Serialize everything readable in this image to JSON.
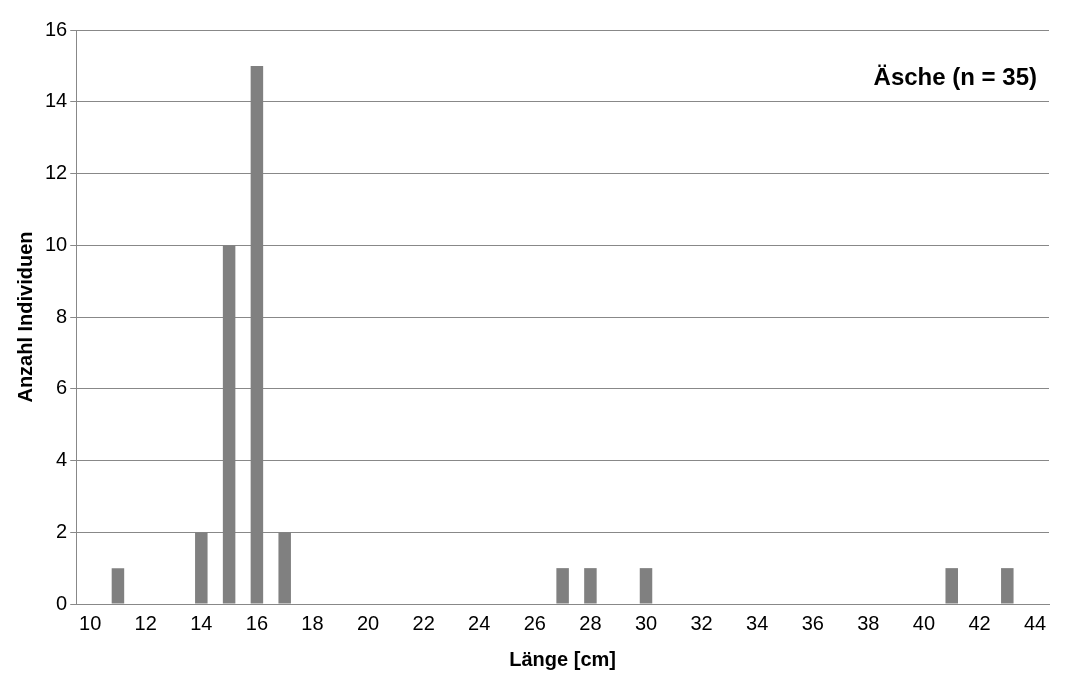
{
  "chart_data": {
    "type": "bar",
    "title": "Äsche (n = 35)",
    "xlabel": "Länge [cm]",
    "ylabel": "Anzahl Individuen",
    "categories": [
      "10",
      null,
      "12",
      null,
      "14",
      null,
      "16",
      null,
      "18",
      null,
      "20",
      null,
      "22",
      null,
      "24",
      null,
      "26",
      null,
      "28",
      null,
      "30",
      null,
      "32",
      null,
      "34",
      null,
      "36",
      null,
      "38",
      null,
      "40",
      null,
      "42",
      null,
      "44"
    ],
    "values": [
      0,
      1,
      0,
      0,
      2,
      10,
      15,
      2,
      0,
      0,
      0,
      0,
      0,
      0,
      0,
      0,
      0,
      1,
      1,
      0,
      1,
      0,
      0,
      0,
      0,
      0,
      0,
      0,
      0,
      0,
      0,
      1,
      0,
      1,
      0
    ],
    "color": "#808080",
    "ylim": [
      0,
      16
    ],
    "yticks": [
      0,
      2,
      4,
      6,
      8,
      10,
      12,
      14,
      16
    ],
    "grid": "y"
  }
}
